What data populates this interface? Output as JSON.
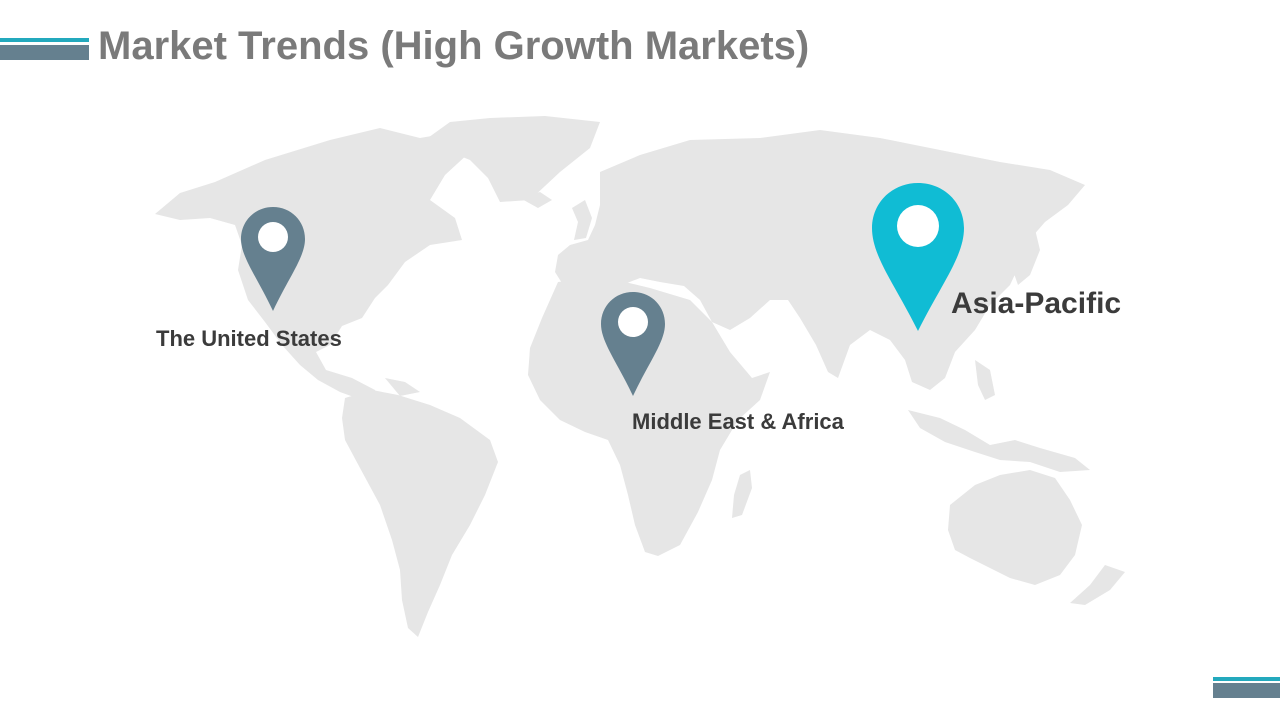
{
  "slide": {
    "title": "Market Trends (High Growth Markets)"
  },
  "markers": [
    {
      "label": "The United States",
      "icon": "map-pin-icon",
      "color": "#65808f"
    },
    {
      "label": "Middle East & Africa",
      "icon": "map-pin-icon",
      "color": "#65808f"
    },
    {
      "label": "Asia-Pacific",
      "icon": "map-pin-icon",
      "color": "#10bcd4"
    }
  ],
  "colors": {
    "title": "#7a7a7a",
    "accent_teal": "#23a9bd",
    "accent_slate": "#65808f",
    "map_land": "#e6e6e6",
    "label_text": "#3b3b3b"
  }
}
